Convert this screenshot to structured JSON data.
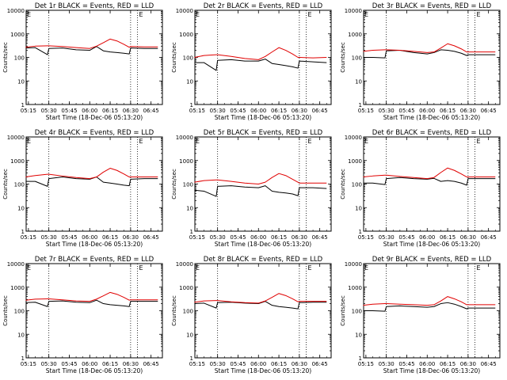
{
  "colors": {
    "events": "#000000",
    "lld": "#e00000",
    "axis": "#000000",
    "background": "#ffffff"
  },
  "common": {
    "y_label": "Counts/sec",
    "x_label": "Start Time (18-Dec-06 05:13:20)",
    "x_ticks": [
      "05:15",
      "05:30",
      "05:45",
      "06:00",
      "06:15",
      "06:30",
      "06:45"
    ],
    "y_ticks": [
      "1",
      "10",
      "100",
      "1000",
      "10000"
    ],
    "corner_mark": "E"
  },
  "chart_data": [
    {
      "type": "line",
      "title": "Det 1r BLACK = Events, RED = LLD",
      "xlabel": "Start Time (18-Dec-06 05:13:20)",
      "ylabel": "Counts/sec",
      "x_unit": "time",
      "x_range": [
        "05:13:20",
        "06:53:20"
      ],
      "y_scale": "log",
      "ylim": [
        1,
        10000
      ],
      "dotted_vlines": [
        "05:30",
        "06:30",
        "06:35"
      ],
      "categories": [
        "05:13",
        "05:20",
        "05:29",
        "05:30",
        "05:40",
        "05:50",
        "06:00",
        "06:05",
        "06:10",
        "06:15",
        "06:20",
        "06:25",
        "06:29",
        "06:30",
        "06:40",
        "06:50"
      ],
      "series": [
        {
          "name": "BLACK = Events",
          "color": "#000000",
          "values": [
            250,
            260,
            130,
            240,
            250,
            210,
            200,
            290,
            190,
            170,
            160,
            150,
            140,
            250,
            240,
            240
          ]
        },
        {
          "name": "RED = LLD",
          "color": "#e00000",
          "values": [
            270,
            300,
            310,
            310,
            290,
            260,
            240,
            300,
            420,
            600,
            500,
            360,
            270,
            290,
            280,
            280
          ]
        }
      ]
    },
    {
      "type": "line",
      "title": "Det 2r BLACK = Events, RED = LLD",
      "xlabel": "Start Time (18-Dec-06 05:13:20)",
      "ylabel": "Counts/sec",
      "x_unit": "time",
      "x_range": [
        "05:13:20",
        "06:53:20"
      ],
      "y_scale": "log",
      "ylim": [
        1,
        10000
      ],
      "dotted_vlines": [
        "05:30",
        "06:30",
        "06:35"
      ],
      "categories": [
        "05:13",
        "05:20",
        "05:29",
        "05:30",
        "05:40",
        "05:50",
        "06:00",
        "06:05",
        "06:10",
        "06:15",
        "06:20",
        "06:25",
        "06:29",
        "06:30",
        "06:40",
        "06:50"
      ],
      "series": [
        {
          "name": "BLACK = Events",
          "color": "#000000",
          "values": [
            60,
            60,
            28,
            75,
            80,
            70,
            70,
            85,
            55,
            50,
            45,
            40,
            35,
            70,
            65,
            60
          ]
        },
        {
          "name": "RED = LLD",
          "color": "#e00000",
          "values": [
            100,
            120,
            130,
            130,
            110,
            90,
            80,
            110,
            170,
            260,
            200,
            140,
            100,
            100,
            95,
            100
          ]
        }
      ]
    },
    {
      "type": "line",
      "title": "Det 3r BLACK = Events, RED = LLD",
      "xlabel": "Start Time (18-Dec-06 05:13:20)",
      "ylabel": "Counts/sec",
      "x_unit": "time",
      "x_range": [
        "05:13:20",
        "06:53:20"
      ],
      "y_scale": "log",
      "ylim": [
        1,
        10000
      ],
      "dotted_vlines": [
        "05:30",
        "06:30",
        "06:35"
      ],
      "categories": [
        "05:13",
        "05:20",
        "05:29",
        "05:30",
        "05:40",
        "05:50",
        "06:00",
        "06:05",
        "06:10",
        "06:15",
        "06:20",
        "06:25",
        "06:29",
        "06:30",
        "06:40",
        "06:50"
      ],
      "series": [
        {
          "name": "BLACK = Events",
          "color": "#000000",
          "values": [
            100,
            100,
            95,
            190,
            200,
            160,
            140,
            160,
            210,
            200,
            180,
            150,
            120,
            130,
            130,
            130
          ]
        },
        {
          "name": "RED = LLD",
          "color": "#e00000",
          "values": [
            180,
            200,
            210,
            210,
            200,
            180,
            160,
            170,
            250,
            380,
            310,
            230,
            170,
            170,
            170,
            170
          ]
        }
      ]
    },
    {
      "type": "line",
      "title": "Det 4r BLACK = Events, RED = LLD",
      "xlabel": "Start Time (18-Dec-06 05:13:20)",
      "ylabel": "Counts/sec",
      "x_unit": "time",
      "x_range": [
        "05:13:20",
        "06:53:20"
      ],
      "y_scale": "log",
      "ylim": [
        1,
        10000
      ],
      "dotted_vlines": [
        "05:30",
        "06:30",
        "06:35"
      ],
      "categories": [
        "05:13",
        "05:20",
        "05:29",
        "05:30",
        "05:40",
        "05:50",
        "06:00",
        "06:05",
        "06:10",
        "06:15",
        "06:20",
        "06:25",
        "06:29",
        "06:30",
        "06:40",
        "06:50"
      ],
      "series": [
        {
          "name": "BLACK = Events",
          "color": "#000000",
          "values": [
            130,
            130,
            80,
            170,
            200,
            170,
            160,
            200,
            120,
            110,
            100,
            90,
            85,
            160,
            170,
            170
          ]
        },
        {
          "name": "RED = LLD",
          "color": "#e00000",
          "values": [
            200,
            230,
            260,
            260,
            220,
            190,
            170,
            200,
            320,
            470,
            380,
            270,
            200,
            200,
            200,
            200
          ]
        }
      ]
    },
    {
      "type": "line",
      "title": "Det 5r BLACK = Events, RED = LLD",
      "xlabel": "Start Time (18-Dec-06 05:13:20)",
      "ylabel": "Counts/sec",
      "x_unit": "time",
      "x_range": [
        "05:13:20",
        "06:53:20"
      ],
      "y_scale": "log",
      "ylim": [
        1,
        10000
      ],
      "dotted_vlines": [
        "05:30",
        "06:30",
        "06:35"
      ],
      "categories": [
        "05:13",
        "05:20",
        "05:29",
        "05:30",
        "05:40",
        "05:50",
        "06:00",
        "06:05",
        "06:10",
        "06:15",
        "06:20",
        "06:25",
        "06:29",
        "06:30",
        "06:40",
        "06:50"
      ],
      "series": [
        {
          "name": "BLACK = Events",
          "color": "#000000",
          "values": [
            55,
            50,
            30,
            80,
            85,
            75,
            70,
            85,
            50,
            45,
            42,
            38,
            32,
            70,
            70,
            65
          ]
        },
        {
          "name": "RED = LLD",
          "color": "#e00000",
          "values": [
            120,
            140,
            150,
            150,
            130,
            110,
            100,
            120,
            190,
            280,
            230,
            160,
            120,
            110,
            110,
            110
          ]
        }
      ]
    },
    {
      "type": "line",
      "title": "Det 6r BLACK = Events, RED = LLD",
      "xlabel": "Start Time (18-Dec-06 05:13:20)",
      "ylabel": "Counts/sec",
      "x_unit": "time",
      "x_range": [
        "05:13:20",
        "06:53:20"
      ],
      "y_scale": "log",
      "ylim": [
        1,
        10000
      ],
      "dotted_vlines": [
        "05:30",
        "06:30",
        "06:35"
      ],
      "categories": [
        "05:13",
        "05:20",
        "05:29",
        "05:30",
        "05:40",
        "05:50",
        "06:00",
        "06:05",
        "06:10",
        "06:15",
        "06:20",
        "06:25",
        "06:29",
        "06:30",
        "06:40",
        "06:50"
      ],
      "series": [
        {
          "name": "BLACK = Events",
          "color": "#000000",
          "values": [
            110,
            110,
            95,
            170,
            190,
            170,
            160,
            175,
            130,
            140,
            130,
            110,
            90,
            170,
            170,
            170
          ]
        },
        {
          "name": "RED = LLD",
          "color": "#e00000",
          "values": [
            200,
            220,
            240,
            240,
            210,
            190,
            170,
            190,
            310,
            480,
            380,
            270,
            200,
            200,
            200,
            200
          ]
        }
      ]
    },
    {
      "type": "line",
      "title": "Det 7r BLACK = Events, RED = LLD",
      "xlabel": "Start Time (18-Dec-06 05:13:20)",
      "ylabel": "Counts/sec",
      "x_unit": "time",
      "x_range": [
        "05:13:20",
        "06:53:20"
      ],
      "y_scale": "log",
      "ylim": [
        1,
        10000
      ],
      "dotted_vlines": [
        "05:30",
        "06:30",
        "06:35"
      ],
      "categories": [
        "05:13",
        "05:20",
        "05:29",
        "05:30",
        "05:40",
        "05:50",
        "06:00",
        "06:05",
        "06:10",
        "06:15",
        "06:20",
        "06:25",
        "06:29",
        "06:30",
        "06:40",
        "06:50"
      ],
      "series": [
        {
          "name": "BLACK = Events",
          "color": "#000000",
          "values": [
            220,
            230,
            150,
            250,
            260,
            230,
            220,
            280,
            200,
            180,
            170,
            160,
            150,
            250,
            250,
            250
          ]
        },
        {
          "name": "RED = LLD",
          "color": "#e00000",
          "values": [
            280,
            310,
            320,
            320,
            290,
            260,
            250,
            310,
            430,
            600,
            500,
            370,
            280,
            290,
            290,
            290
          ]
        }
      ]
    },
    {
      "type": "line",
      "title": "Det 8r BLACK = Events, RED = LLD",
      "xlabel": "Start Time (18-Dec-06 05:13:20)",
      "ylabel": "Counts/sec",
      "x_unit": "time",
      "x_range": [
        "05:13:20",
        "06:53:20"
      ],
      "y_scale": "log",
      "ylim": [
        1,
        10000
      ],
      "dotted_vlines": [
        "05:30",
        "06:30",
        "06:35"
      ],
      "categories": [
        "05:13",
        "05:20",
        "05:29",
        "05:30",
        "05:40",
        "05:50",
        "06:00",
        "06:05",
        "06:10",
        "06:15",
        "06:20",
        "06:25",
        "06:29",
        "06:30",
        "06:40",
        "06:50"
      ],
      "series": [
        {
          "name": "BLACK = Events",
          "color": "#000000",
          "values": [
            200,
            210,
            130,
            220,
            230,
            210,
            200,
            250,
            170,
            150,
            140,
            130,
            120,
            220,
            230,
            230
          ]
        },
        {
          "name": "RED = LLD",
          "color": "#e00000",
          "values": [
            230,
            260,
            270,
            270,
            240,
            220,
            210,
            260,
            370,
            540,
            440,
            320,
            240,
            250,
            250,
            250
          ]
        }
      ]
    },
    {
      "type": "line",
      "title": "Det 9r BLACK = Events, RED = LLD",
      "xlabel": "Start Time (18-Dec-06 05:13:20)",
      "ylabel": "Counts/sec",
      "x_unit": "time",
      "x_range": [
        "05:13:20",
        "06:53:20"
      ],
      "y_scale": "log",
      "ylim": [
        1,
        10000
      ],
      "dotted_vlines": [
        "05:30",
        "06:30",
        "06:35"
      ],
      "categories": [
        "05:13",
        "05:20",
        "05:29",
        "05:30",
        "05:40",
        "05:50",
        "06:00",
        "06:05",
        "06:10",
        "06:15",
        "06:20",
        "06:25",
        "06:29",
        "06:30",
        "06:40",
        "06:50"
      ],
      "series": [
        {
          "name": "BLACK = Events",
          "color": "#000000",
          "values": [
            100,
            100,
            95,
            150,
            160,
            150,
            140,
            150,
            200,
            220,
            190,
            150,
            120,
            130,
            130,
            130
          ]
        },
        {
          "name": "RED = LLD",
          "color": "#e00000",
          "values": [
            170,
            190,
            200,
            200,
            190,
            180,
            170,
            180,
            260,
            400,
            320,
            240,
            180,
            180,
            180,
            180
          ]
        }
      ]
    }
  ]
}
